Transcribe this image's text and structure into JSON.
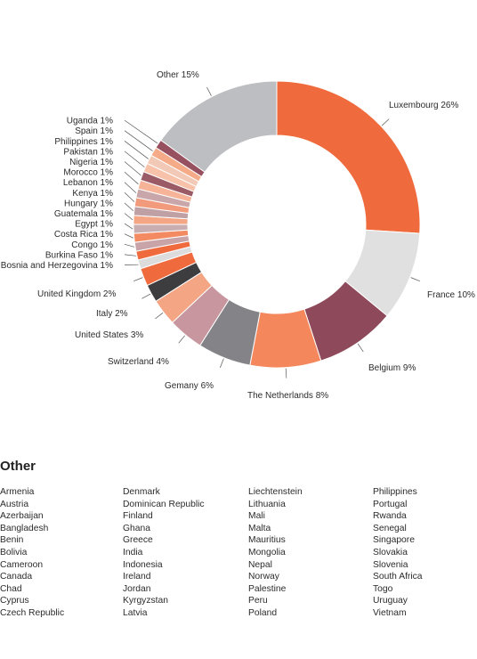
{
  "chart_data": {
    "type": "pie",
    "donut": true,
    "labels": [
      "Luxembourg 26%",
      "France 10%",
      "Belgium 9%",
      "The Netherlands 8%",
      "Gemany 6%",
      "Switzerland 4%",
      "United States 3%",
      "Italy 2%",
      "United Kingdom 2%",
      "Bosnia and Herzegovina 1%",
      "Burkina Faso 1%",
      "Congo 1%",
      "Costa Rica 1%",
      "Egypt 1%",
      "Guatemala 1%",
      "Hungary 1%",
      "Kenya 1%",
      "Lebanon 1%",
      "Morocco 1%",
      "Nigeria 1%",
      "Pakistan 1%",
      "Philippines 1%",
      "Spain 1%",
      "Uganda 1%",
      "Other 15%"
    ],
    "values": [
      26,
      10,
      9,
      8,
      6,
      4,
      3,
      2,
      2,
      1,
      1,
      1,
      1,
      1,
      1,
      1,
      1,
      1,
      1,
      1,
      1,
      1,
      1,
      1,
      15
    ],
    "colors": [
      "#ef6a3c",
      "#e0e0e0",
      "#8e4a5a",
      "#f4875c",
      "#848488",
      "#c7969e",
      "#f4a584",
      "#3d3d3f",
      "#ef6a3c",
      "#dcdcdc",
      "#ef6a3c",
      "#c8a4a9",
      "#f38a62",
      "#c8aeb1",
      "#f4a584",
      "#bfa0a4",
      "#f29b7c",
      "#c9a6aa",
      "#f6b397",
      "#9a5a66",
      "#f7c2a9",
      "#f2c9b6",
      "#f6ab88",
      "#96505f",
      "#bdbec1"
    ]
  },
  "other": {
    "heading": "Other",
    "columns": [
      [
        "Armenia",
        "Austria",
        "Azerbaijan",
        "Bangladesh",
        "Benin",
        "Bolivia",
        "Cameroon",
        "Canada",
        "Chad",
        "Cyprus",
        "Czech Republic"
      ],
      [
        "Denmark",
        "Dominican Republic",
        "Finland",
        "Ghana",
        "Greece",
        "India",
        "Indonesia",
        "Ireland",
        "Jordan",
        "Kyrgyzstan",
        "Latvia"
      ],
      [
        "Liechtenstein",
        "Lithuania",
        "Mali",
        "Malta",
        "Mauritius",
        "Mongolia",
        "Nepal",
        "Norway",
        "Palestine",
        "Peru",
        "Poland"
      ],
      [
        "Philippines",
        "Portugal",
        "Rwanda",
        "Senegal",
        "Singapore",
        "Slovakia",
        "Slovenia",
        "South Africa",
        "Togo",
        "Uruguay",
        "Vietnam"
      ]
    ]
  }
}
